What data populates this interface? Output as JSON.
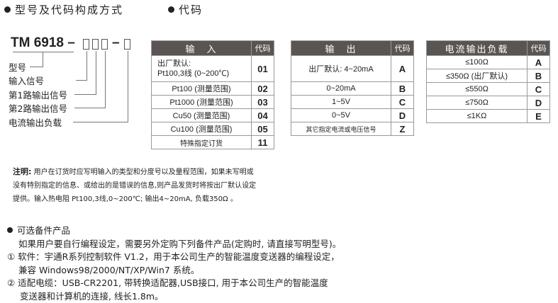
{
  "headings": {
    "model": "型号及代码构成方式",
    "code": "代码"
  },
  "model": {
    "prefix": "TM 6918 –",
    "dash": "–",
    "labels": [
      "型号",
      "输入信号",
      "第1路输出信号",
      "第2路输出信号",
      "电流输出负载"
    ]
  },
  "input_table": {
    "header": "输　入",
    "code_header": "代码",
    "rows": [
      {
        "desc": "出厂默认:",
        "desc2": "Pt100,3线 (0~200℃)",
        "code": "01"
      },
      {
        "desc": "Pt100  (测量范围)",
        "code": "02"
      },
      {
        "desc": "Pt1000  (测量范围)",
        "code": "03"
      },
      {
        "desc": "Cu50 (测量范围)",
        "code": "04"
      },
      {
        "desc": "Cu100 (测量范围)",
        "code": "05"
      },
      {
        "desc": "特殊指定订货",
        "code": "11"
      }
    ]
  },
  "output_table": {
    "header": "输　出",
    "code_header": "代码",
    "rows": [
      {
        "desc": "出厂默认: 4~20mA",
        "code": "A"
      },
      {
        "desc": "0~20mA",
        "code": "B"
      },
      {
        "desc": "1~5V",
        "code": "C"
      },
      {
        "desc": "0~5V",
        "code": "D"
      },
      {
        "desc": "其它指定电流或电压信号",
        "code": "Z"
      }
    ]
  },
  "load_table": {
    "header": "电流输出负载",
    "code_header": "代码",
    "rows": [
      {
        "desc": "≤100Ω",
        "code": "A"
      },
      {
        "desc": "≤350Ω (出厂默认)",
        "code": "B"
      },
      {
        "desc": "≤550Ω",
        "code": "C"
      },
      {
        "desc": "≤750Ω",
        "code": "D"
      },
      {
        "desc": "≤1KΩ",
        "code": "E"
      }
    ]
  },
  "note": {
    "label": "注明:",
    "lines": [
      "用户在订货时应写明输入的类型和分度号以及量程范围，如果未写明或",
      "没有特别指定的信息、或给出的是错误的信息,则产品发货时将按出厂默认设定",
      "提供。输入热电阻 Pt100,3线,0~200℃; 输出4~20mA, 负载350Ω 。"
    ]
  },
  "options": {
    "title": "可选备件产品",
    "lines": [
      "如果用户要自行编程设定，需要另外定购下列备件产品(定购时, 请直接写明型号)。",
      "① 软件：宇通R系列控制软件 V1.2，用于本公司生产的智能温度变送器的编程设定，",
      "兼容 Windows98/2000/NT/XP/Win7 系统。",
      "② 适配电缆：USB-CR2201, 带转换适配器,USB接口, 用于本公司生产的智能温度",
      "变送器和计算机的连接, 线长1.8m。"
    ]
  }
}
